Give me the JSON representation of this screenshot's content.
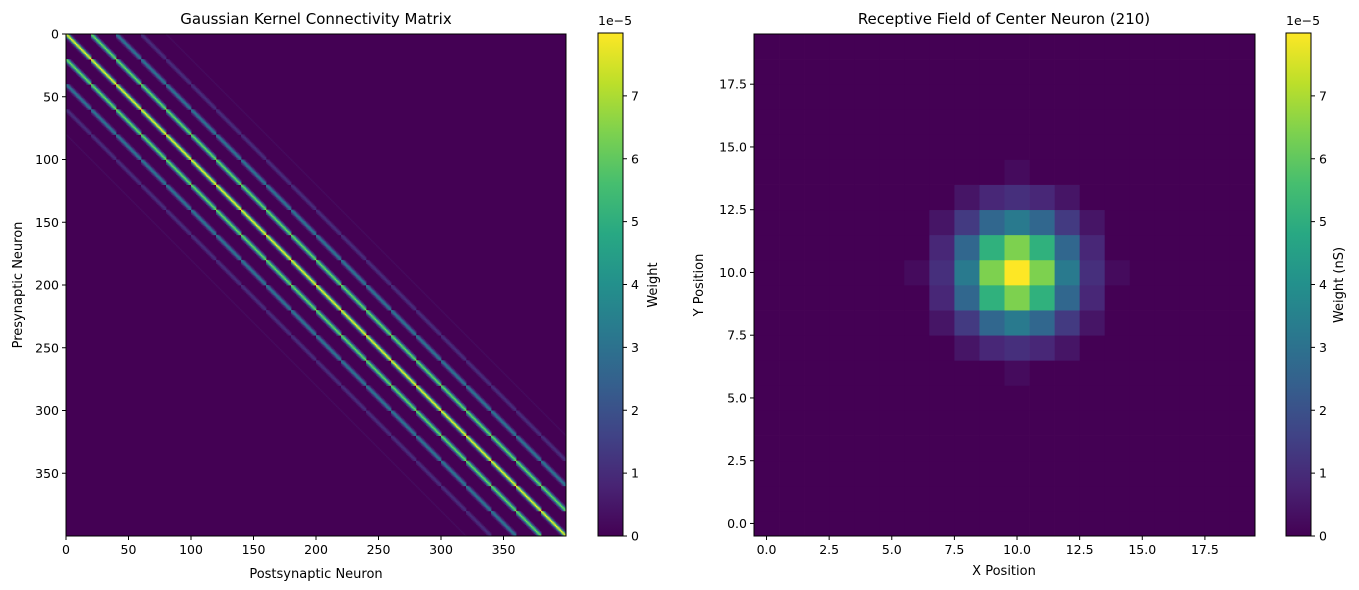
{
  "chart_data": [
    {
      "type": "heatmap",
      "title": "Gaussian Kernel Connectivity Matrix",
      "xlabel": "Postsynaptic Neuron",
      "ylabel": "Presynaptic Neuron",
      "xlim": [
        0,
        400
      ],
      "ylim": [
        400,
        0
      ],
      "x_ticks": [
        "0",
        "50",
        "100",
        "150",
        "200",
        "250",
        "300",
        "350"
      ],
      "y_ticks": [
        "0",
        "50",
        "100",
        "150",
        "200",
        "250",
        "300",
        "350"
      ],
      "colorbar": {
        "label": "Weight",
        "range": [
          0,
          8e-05
        ],
        "exponent_label": "1e−5",
        "ticks": [
          "0",
          "1",
          "2",
          "3",
          "4",
          "5",
          "6",
          "7"
        ]
      },
      "grid": false
    },
    {
      "type": "heatmap",
      "title": "Receptive Field of Center Neuron (210)",
      "xlabel": "X Position",
      "ylabel": "Y Position",
      "xlim": [
        -0.5,
        19.5
      ],
      "ylim": [
        -0.5,
        19.5
      ],
      "x_ticks": [
        "0.0",
        "2.5",
        "5.0",
        "7.5",
        "10.0",
        "12.5",
        "15.0",
        "17.5"
      ],
      "y_ticks": [
        "0.0",
        "2.5",
        "5.0",
        "7.5",
        "10.0",
        "12.5",
        "15.0",
        "17.5"
      ],
      "colorbar": {
        "label": "Weight (nS)",
        "range": [
          0,
          8e-05
        ],
        "exponent_label": "1e−5",
        "ticks": [
          "0",
          "1",
          "2",
          "3",
          "4",
          "5",
          "6",
          "7"
        ]
      },
      "center_neuron": {
        "x": 10,
        "y": 10
      },
      "peak_weight": 8e-05,
      "grid": false
    }
  ]
}
